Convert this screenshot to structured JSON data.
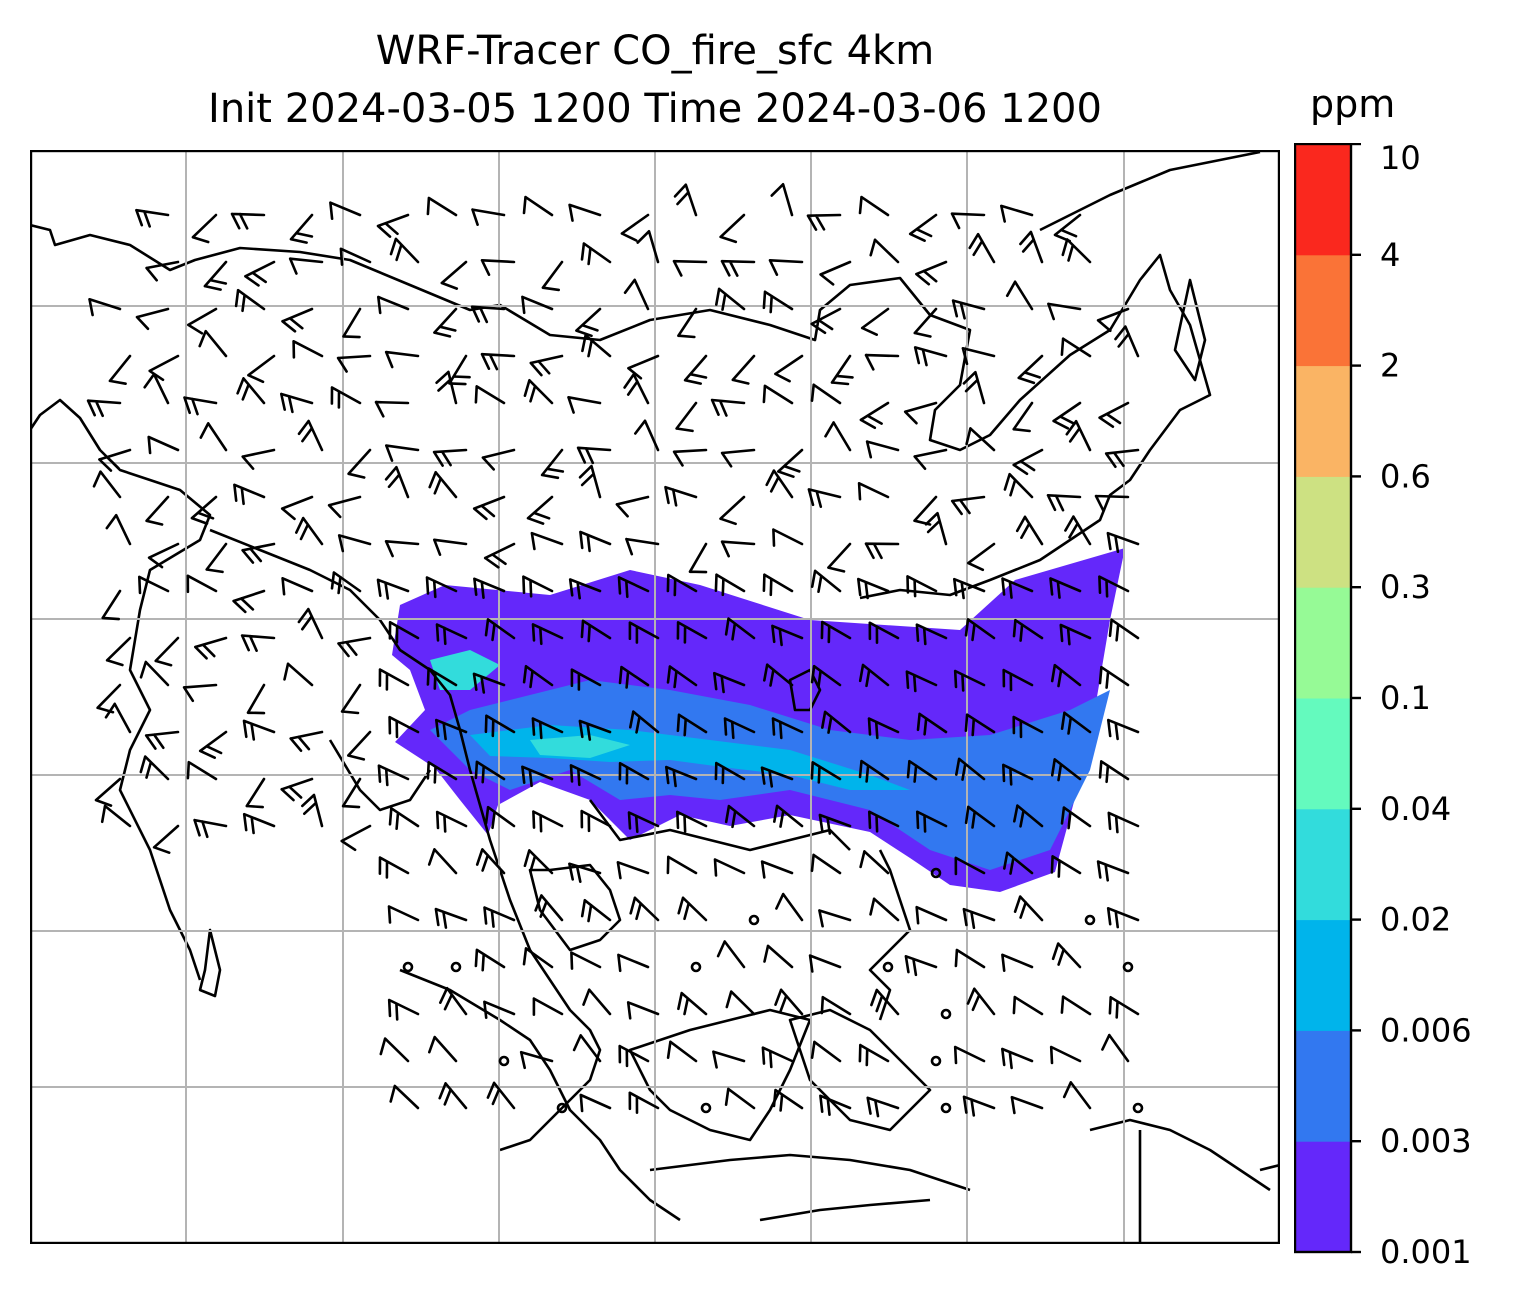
{
  "title": "WRF-Tracer CO_fire_sfc 4km",
  "subtitle": "Init 2024-03-05 1200 Time 2024-03-06 1200",
  "colorbar": {
    "unit": "ppm",
    "levels": [
      "0.001",
      "0.003",
      "0.006",
      "0.02",
      "0.04",
      "0.1",
      "0.3",
      "0.6",
      "2",
      "4",
      "10"
    ],
    "colors": [
      "#6428fa",
      "#3278f0",
      "#00b4eb",
      "#32dcdc",
      "#64fabe",
      "#96fa96",
      "#cde182",
      "#fab464",
      "#fa7337",
      "#fa281e"
    ]
  },
  "map": {
    "background": "#ffffff",
    "grid": true,
    "gridlines_x": 7,
    "gridlines_y": 6,
    "coastline_color": "#000000",
    "plume_colors": {
      "outer": "#6428fa",
      "mid": "#3278f0",
      "inner": "#00b4eb",
      "core": "#32dcdc"
    },
    "wind_barbs": true
  }
}
